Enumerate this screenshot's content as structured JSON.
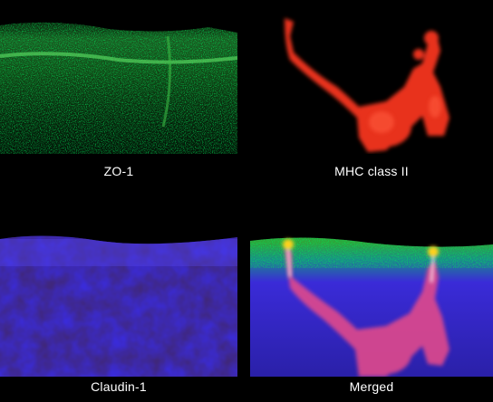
{
  "panels": [
    {
      "id": "zo1",
      "label": "ZO-1",
      "color": "#2fbf3a"
    },
    {
      "id": "mhc",
      "label": "MHC class II",
      "color": "#e8321e"
    },
    {
      "id": "claudin",
      "label": "Claudin-1",
      "color": "#3a2bd8"
    },
    {
      "id": "merged",
      "label": "Merged",
      "color": "#e04a8c"
    }
  ]
}
